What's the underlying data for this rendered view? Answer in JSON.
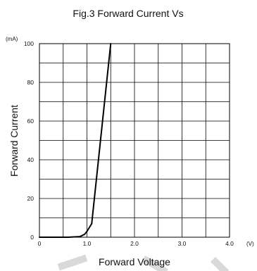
{
  "chart_data": {
    "type": "line",
    "title": "Fig.3 Forward Current Vs",
    "xlabel": "Forward  Voltage",
    "ylabel": "Forward Current",
    "x_unit": "(V)",
    "y_unit": "(mA)",
    "xlim": [
      0,
      4.0
    ],
    "ylim": [
      0,
      100
    ],
    "x_ticks": [
      0,
      1.0,
      2.0,
      3.0,
      4.0
    ],
    "x_tick_labels": [
      "0",
      "1.0",
      "2.0",
      "3.0",
      "4.0"
    ],
    "y_ticks": [
      0,
      20,
      40,
      60,
      80,
      100
    ],
    "y_tick_labels": [
      "0",
      "20",
      "40",
      "60",
      "80",
      "100"
    ],
    "grid": true,
    "x_grid_step": 0.5,
    "y_grid_step": 10,
    "series": [
      {
        "x": [
          0,
          0.6,
          0.85,
          0.95,
          1.0,
          1.05,
          1.1,
          1.5
        ],
        "y": [
          0,
          0,
          0.3,
          1.5,
          3,
          5,
          7,
          100
        ]
      }
    ]
  }
}
